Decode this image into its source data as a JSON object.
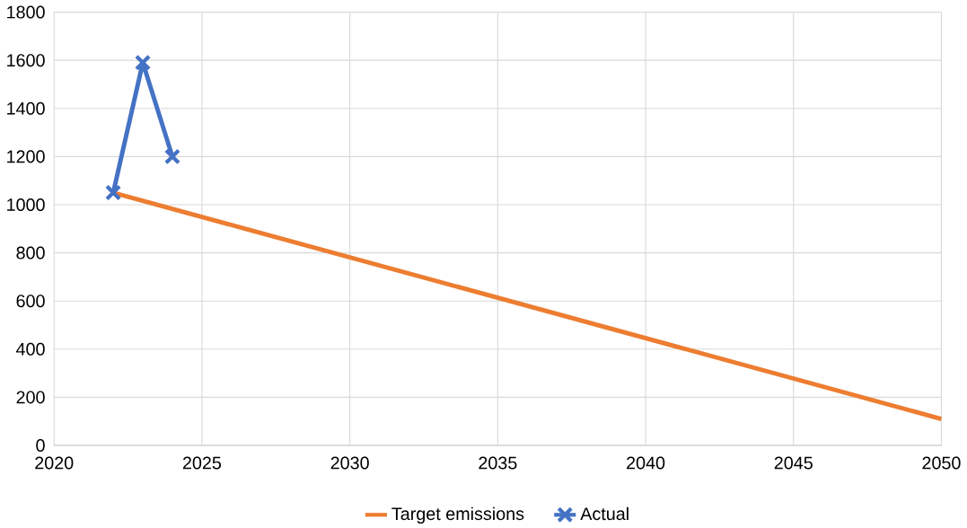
{
  "chart_data": {
    "type": "line",
    "series": [
      {
        "name": "Target emissions",
        "color": "#ed7d31",
        "x": [
          2022,
          2050
        ],
        "values": [
          1050,
          110
        ],
        "marker": "none"
      },
      {
        "name": "Actual",
        "color": "#4472c4",
        "x": [
          2022,
          2023,
          2024
        ],
        "values": [
          1050,
          1590,
          1200
        ],
        "marker": "cross"
      }
    ],
    "xlim": [
      2020,
      2050
    ],
    "xticks": [
      2020,
      2025,
      2030,
      2035,
      2040,
      2045,
      2050
    ],
    "ylim": [
      0,
      1800
    ],
    "yticks": [
      0,
      200,
      400,
      600,
      800,
      1000,
      1200,
      1400,
      1600,
      1800
    ],
    "grid": true,
    "legend": "bottom",
    "line_style": "solid"
  }
}
